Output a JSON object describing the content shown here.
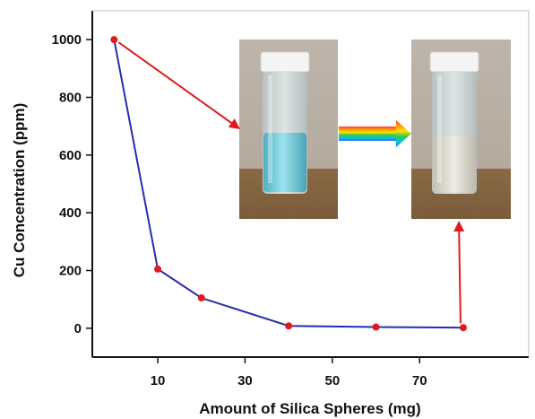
{
  "chart_data": {
    "type": "line",
    "title": "",
    "xlabel": "Amount of Silica Spheres (mg)",
    "ylabel": "Cu Concentration (ppm)",
    "xlim": [
      -5,
      95
    ],
    "ylim": [
      -100,
      1100
    ],
    "xticks": [
      10,
      30,
      50,
      70
    ],
    "yticks": [
      0,
      200,
      400,
      600,
      800,
      1000
    ],
    "grid": false,
    "legend": "none",
    "series": [
      {
        "x": [
          0,
          10,
          20,
          40,
          60,
          80
        ],
        "y": [
          1000,
          205,
          105,
          8,
          4,
          2
        ]
      }
    ],
    "colors": {
      "line": "#2b2bb0",
      "marker": "#e01b1b",
      "arrow": "#e01b1b",
      "axis": "#111111"
    },
    "annotations": [
      {
        "type": "photo",
        "subject": "vial-with-blue-copper-solution",
        "points_to_x": 0
      },
      {
        "type": "photo",
        "subject": "vial-with-clear-solution",
        "points_to_x": 80
      },
      {
        "type": "rainbow-arrow",
        "from": "vial-with-blue-copper-solution",
        "to": "vial-with-clear-solution"
      }
    ]
  }
}
